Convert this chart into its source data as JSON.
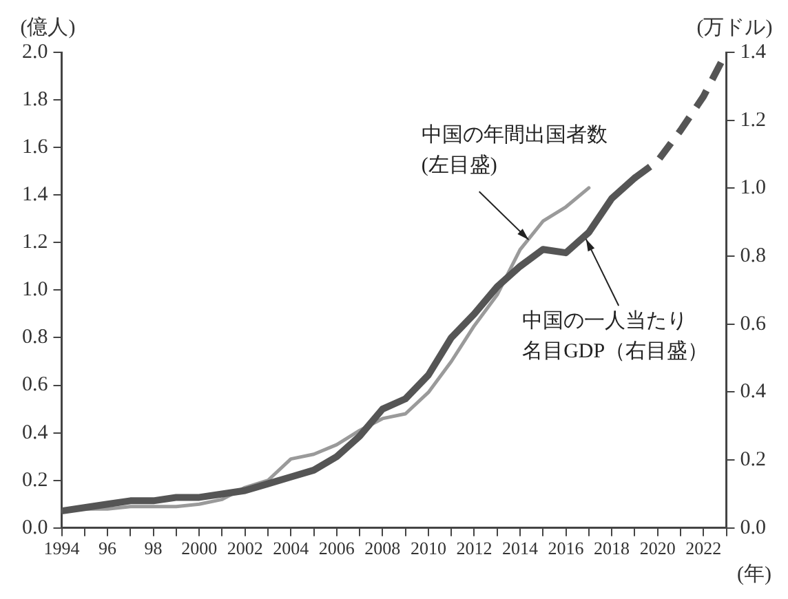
{
  "chart_data": {
    "type": "line",
    "ylabel": "(億人)",
    "y2label": "(万ドル)",
    "xlabel": "(年)",
    "xlim": [
      1994,
      2023
    ],
    "xticks": [
      1994,
      {
        "value": 1995,
        "label": null
      },
      {
        "value": 1996,
        "label": "96"
      },
      {
        "value": 1997,
        "label": null
      },
      {
        "value": 1998,
        "label": "98"
      },
      {
        "value": 1999,
        "label": null
      },
      2000,
      {
        "value": 2001,
        "label": null
      },
      2002,
      {
        "value": 2003,
        "label": null
      },
      2004,
      {
        "value": 2005,
        "label": null
      },
      2006,
      {
        "value": 2007,
        "label": null
      },
      2008,
      {
        "value": 2009,
        "label": null
      },
      2010,
      {
        "value": 2011,
        "label": null
      },
      2012,
      {
        "value": 2013,
        "label": null
      },
      2014,
      {
        "value": 2015,
        "label": null
      },
      2016,
      {
        "value": 2017,
        "label": null
      },
      2018,
      {
        "value": 2019,
        "label": null
      },
      2020,
      {
        "value": 2021,
        "label": null
      },
      2022,
      {
        "value": 2023,
        "label": null
      }
    ],
    "ylim": [
      0,
      2
    ],
    "yticks": [
      {
        "value": 0,
        "label": "0.0"
      },
      0.2,
      0.4,
      0.6,
      0.8,
      {
        "value": 1,
        "label": "1.0"
      },
      1.2,
      1.4,
      1.6,
      1.8,
      {
        "value": 2,
        "label": "2.0"
      }
    ],
    "y2lim": [
      0,
      1.4
    ],
    "y2ticks": [
      {
        "value": 0,
        "label": "0.0"
      },
      0.2,
      0.4,
      0.6,
      0.8,
      {
        "value": 1,
        "label": "1.0"
      },
      1.2,
      1.4
    ],
    "grid": false,
    "legend": false,
    "marker": "none",
    "series": [
      {
        "color": "#9a9a9a",
        "line_style": "solid",
        "x": [
          1994,
          1995,
          1996,
          1997,
          1998,
          1999,
          2000,
          2001,
          2002,
          2003,
          2004,
          2005,
          2006,
          2007,
          2008,
          2009,
          2010,
          2011,
          2012,
          2013,
          2014,
          2015,
          2016,
          2017
        ],
        "values": [
          0.07,
          0.08,
          0.08,
          0.09,
          0.09,
          0.09,
          0.1,
          0.12,
          0.17,
          0.2,
          0.29,
          0.31,
          0.35,
          0.41,
          0.46,
          0.48,
          0.57,
          0.7,
          0.85,
          0.98,
          1.17,
          1.29,
          1.35,
          1.43
        ]
      },
      {
        "color": "#555555",
        "line_style": "solid",
        "axis": "y2",
        "x": [
          1994,
          1995,
          1996,
          1997,
          1998,
          1999,
          2000,
          2001,
          2002,
          2003,
          2004,
          2005,
          2006,
          2007,
          2008,
          2009,
          2010,
          2011,
          2012,
          2013,
          2014,
          2015,
          2016,
          2017,
          2018,
          2019
        ],
        "values": [
          0.05,
          0.06,
          0.07,
          0.08,
          0.08,
          0.09,
          0.09,
          0.1,
          0.11,
          0.13,
          0.15,
          0.17,
          0.21,
          0.27,
          0.35,
          0.38,
          0.45,
          0.56,
          0.63,
          0.71,
          0.77,
          0.82,
          0.81,
          0.87,
          0.97,
          1.03
        ]
      },
      {
        "color": "#555555",
        "line_style": "dashed",
        "axis": "y2",
        "x": [
          2019,
          2020,
          2021,
          2022,
          2023
        ],
        "values": [
          1.03,
          1.08,
          1.17,
          1.27,
          1.4
        ]
      }
    ],
    "annotations": [
      {
        "text": "中国の年間出国者数(左目盛)",
        "x": 2014.5,
        "y": 1.2
      },
      {
        "text": "中国の一人当たり名目GDP（右目盛）",
        "x": 2016.8,
        "y": 1.23
      }
    ]
  }
}
